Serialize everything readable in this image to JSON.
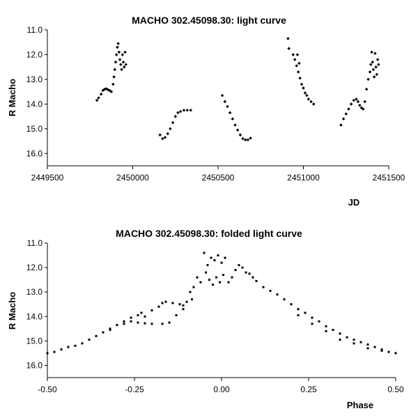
{
  "chart_data": [
    {
      "type": "scatter",
      "title": "MACHO 302.45098.30: light curve",
      "xlabel": "JD",
      "ylabel": "R Macho",
      "xlim": [
        2449500,
        2451500
      ],
      "ylim": [
        11.0,
        16.5
      ],
      "y_inverted": true,
      "grid": false,
      "x_ticks": [
        "2449500",
        "2450000",
        "2450500",
        "2451000",
        "2451500"
      ],
      "y_ticks": [
        "11.0",
        "12.0",
        "13.0",
        "14.0",
        "15.0",
        "16.0"
      ],
      "marker_color": "#000000",
      "series": [
        {
          "points": [
            [
              2449790,
              13.85
            ],
            [
              2449800,
              13.75
            ],
            [
              2449815,
              13.6
            ],
            [
              2449825,
              13.45
            ],
            [
              2449835,
              13.4
            ],
            [
              2449845,
              13.38
            ],
            [
              2449855,
              13.42
            ],
            [
              2449865,
              13.45
            ],
            [
              2449875,
              13.5
            ],
            [
              2449885,
              13.2
            ],
            [
              2449890,
              12.9
            ],
            [
              2449895,
              12.6
            ],
            [
              2449900,
              12.3
            ],
            [
              2449905,
              12.0
            ],
            [
              2449910,
              11.7
            ],
            [
              2449915,
              11.55
            ],
            [
              2449920,
              11.9
            ],
            [
              2449925,
              12.2
            ],
            [
              2449930,
              12.4
            ],
            [
              2449935,
              12.6
            ],
            [
              2449940,
              12.0
            ],
            [
              2449945,
              12.3
            ],
            [
              2449950,
              12.5
            ],
            [
              2449955,
              11.9
            ],
            [
              2449960,
              12.4
            ],
            [
              2450160,
              15.25
            ],
            [
              2450175,
              15.4
            ],
            [
              2450190,
              15.35
            ],
            [
              2450205,
              15.2
            ],
            [
              2450220,
              15.0
            ],
            [
              2450235,
              14.75
            ],
            [
              2450250,
              14.5
            ],
            [
              2450265,
              14.35
            ],
            [
              2450280,
              14.3
            ],
            [
              2450300,
              14.25
            ],
            [
              2450320,
              14.25
            ],
            [
              2450340,
              14.25
            ],
            [
              2450525,
              13.65
            ],
            [
              2450540,
              13.9
            ],
            [
              2450555,
              14.1
            ],
            [
              2450570,
              14.35
            ],
            [
              2450585,
              14.6
            ],
            [
              2450600,
              14.85
            ],
            [
              2450615,
              15.05
            ],
            [
              2450630,
              15.25
            ],
            [
              2450645,
              15.4
            ],
            [
              2450660,
              15.45
            ],
            [
              2450675,
              15.45
            ],
            [
              2450690,
              15.38
            ],
            [
              2450910,
              11.35
            ],
            [
              2450915,
              11.75
            ],
            [
              2450940,
              12.0
            ],
            [
              2450950,
              12.2
            ],
            [
              2450960,
              12.45
            ],
            [
              2450970,
              12.7
            ],
            [
              2450980,
              12.95
            ],
            [
              2450990,
              13.2
            ],
            [
              2451000,
              13.35
            ],
            [
              2451010,
              13.55
            ],
            [
              2451020,
              13.65
            ],
            [
              2451030,
              13.8
            ],
            [
              2451045,
              13.9
            ],
            [
              2451060,
              14.0
            ],
            [
              2450965,
              12.0
            ],
            [
              2450975,
              12.35
            ],
            [
              2451220,
              14.85
            ],
            [
              2451235,
              14.6
            ],
            [
              2451250,
              14.4
            ],
            [
              2451265,
              14.2
            ],
            [
              2451280,
              14.0
            ],
            [
              2451295,
              13.85
            ],
            [
              2451310,
              13.8
            ],
            [
              2451320,
              13.9
            ],
            [
              2451330,
              14.05
            ],
            [
              2451340,
              14.15
            ],
            [
              2451350,
              14.2
            ],
            [
              2451360,
              13.9
            ],
            [
              2451370,
              13.4
            ],
            [
              2451380,
              13.0
            ],
            [
              2451390,
              12.7
            ],
            [
              2451395,
              12.4
            ],
            [
              2451400,
              11.9
            ],
            [
              2451405,
              12.3
            ],
            [
              2451410,
              12.6
            ],
            [
              2451415,
              12.9
            ],
            [
              2451420,
              11.95
            ],
            [
              2451425,
              12.5
            ],
            [
              2451430,
              12.8
            ],
            [
              2451435,
              12.2
            ],
            [
              2451440,
              12.4
            ]
          ]
        }
      ]
    },
    {
      "type": "scatter",
      "title": "MACHO 302.45098.30: folded light curve",
      "xlabel": "Phase",
      "ylabel": "R Macho",
      "xlim": [
        -0.5,
        0.5
      ],
      "ylim": [
        11.0,
        16.5
      ],
      "y_inverted": true,
      "grid": false,
      "x_ticks": [
        "-0.50",
        "-0.25",
        "0.00",
        "0.25",
        "0.50"
      ],
      "y_ticks": [
        "11.0",
        "12.0",
        "13.0",
        "14.0",
        "15.0",
        "16.0"
      ],
      "marker_color": "#000000",
      "series": [
        {
          "points": [
            [
              -0.5,
              15.5
            ],
            [
              -0.48,
              15.45
            ],
            [
              -0.46,
              15.35
            ],
            [
              -0.44,
              15.25
            ],
            [
              -0.42,
              15.2
            ],
            [
              -0.4,
              15.1
            ],
            [
              -0.38,
              14.95
            ],
            [
              -0.36,
              14.8
            ],
            [
              -0.34,
              14.65
            ],
            [
              -0.32,
              14.5
            ],
            [
              -0.3,
              14.35
            ],
            [
              -0.28,
              14.2
            ],
            [
              -0.26,
              14.05
            ],
            [
              -0.24,
              13.95
            ],
            [
              -0.23,
              13.85
            ],
            [
              -0.22,
              14.0
            ],
            [
              -0.2,
              13.75
            ],
            [
              -0.18,
              13.6
            ],
            [
              -0.17,
              13.45
            ],
            [
              -0.16,
              13.4
            ],
            [
              -0.14,
              13.45
            ],
            [
              -0.12,
              13.5
            ],
            [
              -0.11,
              13.55
            ],
            [
              -0.1,
              13.4
            ],
            [
              -0.09,
              13.0
            ],
            [
              -0.085,
              13.3
            ],
            [
              -0.08,
              12.8
            ],
            [
              -0.07,
              12.4
            ],
            [
              -0.06,
              12.6
            ],
            [
              -0.05,
              11.4
            ],
            [
              -0.045,
              12.2
            ],
            [
              -0.04,
              11.9
            ],
            [
              -0.035,
              12.5
            ],
            [
              -0.03,
              11.6
            ],
            [
              -0.025,
              12.7
            ],
            [
              -0.02,
              11.7
            ],
            [
              -0.015,
              12.4
            ],
            [
              -0.01,
              11.5
            ],
            [
              -0.005,
              12.6
            ],
            [
              0.0,
              11.8
            ],
            [
              0.005,
              12.3
            ],
            [
              0.01,
              11.6
            ],
            [
              0.02,
              12.6
            ],
            [
              0.03,
              12.4
            ],
            [
              0.04,
              12.1
            ],
            [
              0.05,
              11.9
            ],
            [
              0.06,
              12.0
            ],
            [
              0.07,
              12.2
            ],
            [
              0.08,
              12.25
            ],
            [
              0.09,
              12.4
            ],
            [
              0.1,
              12.55
            ],
            [
              0.12,
              12.8
            ],
            [
              0.14,
              12.95
            ],
            [
              0.16,
              13.1
            ],
            [
              0.18,
              13.3
            ],
            [
              0.2,
              13.5
            ],
            [
              0.22,
              13.7
            ],
            [
              0.24,
              13.85
            ],
            [
              0.26,
              14.05
            ],
            [
              0.28,
              14.2
            ],
            [
              0.3,
              14.4
            ],
            [
              0.32,
              14.55
            ],
            [
              0.34,
              14.7
            ],
            [
              0.36,
              14.85
            ],
            [
              0.38,
              14.95
            ],
            [
              0.4,
              15.05
            ],
            [
              0.42,
              15.15
            ],
            [
              0.44,
              15.25
            ],
            [
              0.46,
              15.35
            ],
            [
              0.48,
              15.45
            ],
            [
              0.5,
              15.5
            ],
            [
              -0.32,
              14.55
            ],
            [
              -0.28,
              14.3
            ],
            [
              -0.26,
              14.2
            ],
            [
              -0.24,
              14.25
            ],
            [
              -0.22,
              14.28
            ],
            [
              -0.2,
              14.3
            ],
            [
              -0.17,
              14.3
            ],
            [
              -0.15,
              14.25
            ],
            [
              -0.13,
              13.95
            ],
            [
              -0.11,
              13.7
            ],
            [
              0.22,
              13.95
            ],
            [
              0.26,
              14.3
            ],
            [
              0.3,
              14.6
            ],
            [
              0.34,
              14.95
            ],
            [
              0.38,
              15.1
            ],
            [
              0.42,
              15.3
            ],
            [
              0.46,
              15.4
            ]
          ]
        }
      ]
    }
  ]
}
